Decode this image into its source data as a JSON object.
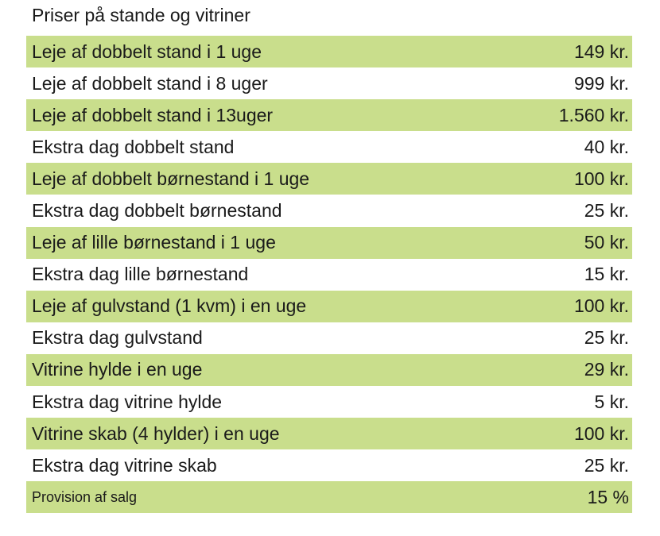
{
  "title": "Priser på stande og vitriner",
  "colors": {
    "row_highlight": "#c9de8c",
    "text": "#1a1a1a"
  },
  "rows": [
    {
      "label": "Leje af dobbelt stand i 1 uge",
      "price": "149 kr."
    },
    {
      "label": "Leje af dobbelt stand i 8 uger",
      "price": "999 kr."
    },
    {
      "label": "Leje af dobbelt stand i 13uger",
      "price": "1.560 kr."
    },
    {
      "label": "Ekstra dag dobbelt stand",
      "price": "40 kr."
    },
    {
      "label": "Leje af dobbelt børnestand i 1 uge",
      "price": "100 kr."
    },
    {
      "label": "Ekstra dag dobbelt børnestand",
      "price": "25 kr."
    },
    {
      "label": "Leje af lille børnestand i 1 uge",
      "price": "50 kr."
    },
    {
      "label": "Ekstra dag lille børnestand",
      "price": "15 kr."
    },
    {
      "label": "Leje af gulvstand (1 kvm) i en uge",
      "price": "100 kr."
    },
    {
      "label": "Ekstra dag gulvstand",
      "price": "25 kr."
    },
    {
      "label": "Vitrine hylde i en uge",
      "price": "29 kr."
    },
    {
      "label": "Ekstra dag vitrine hylde",
      "price": "5 kr."
    },
    {
      "label": "Vitrine skab (4 hylder) i en uge",
      "price": "100 kr."
    },
    {
      "label": "Ekstra dag vitrine skab",
      "price": "25 kr."
    },
    {
      "label": "Provision af salg",
      "price": "15 %"
    }
  ]
}
